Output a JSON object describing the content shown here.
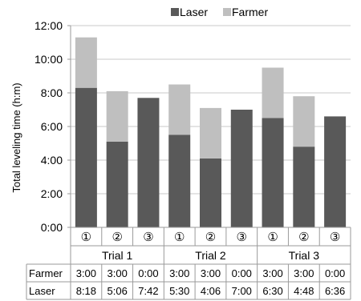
{
  "chart_data": {
    "type": "bar",
    "stacked": true,
    "title": "",
    "xlabel": "",
    "ylabel": "Total leveling time (h:m)",
    "ylim": [
      0,
      12
    ],
    "yticks": [
      "0:00",
      "2:00",
      "4:00",
      "6:00",
      "8:00",
      "10:00",
      "12:00"
    ],
    "grid": true,
    "legend_position": "top",
    "categories": [
      "①",
      "②",
      "③",
      "①",
      "②",
      "③",
      "①",
      "②",
      "③"
    ],
    "groups": [
      {
        "label": "Trial 1",
        "span": 3
      },
      {
        "label": "Trial 2",
        "span": 3
      },
      {
        "label": "Trial 3",
        "span": 3
      }
    ],
    "series": [
      {
        "name": "Laser",
        "color": "#595959",
        "values": [
          8.3,
          5.1,
          7.7,
          5.5,
          4.1,
          7.0,
          6.5,
          4.8,
          6.6
        ],
        "labels": [
          "8:18",
          "5:06",
          "7:42",
          "5:30",
          "4:06",
          "7:00",
          "6:30",
          "4:48",
          "6:36"
        ]
      },
      {
        "name": "Farmer",
        "color": "#bfbfbf",
        "values": [
          3.0,
          3.0,
          0.0,
          3.0,
          3.0,
          0.0,
          3.0,
          3.0,
          0.0
        ],
        "labels": [
          "3:00",
          "3:00",
          "0:00",
          "3:00",
          "3:00",
          "0:00",
          "3:00",
          "3:00",
          "0:00"
        ]
      }
    ],
    "table_rows": [
      {
        "name": "Farmer",
        "series_index": 1
      },
      {
        "name": "Laser",
        "series_index": 0
      }
    ]
  }
}
